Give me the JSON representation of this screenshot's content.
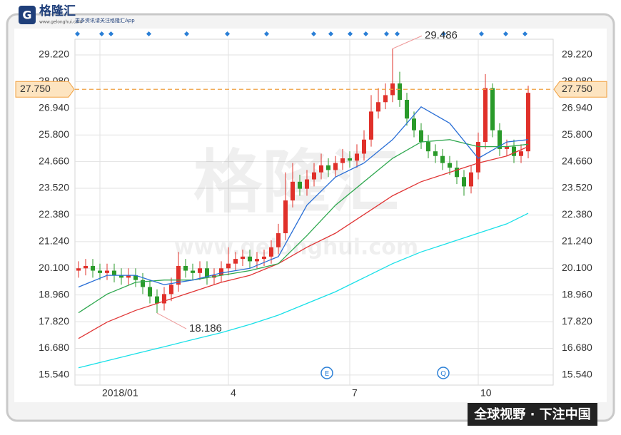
{
  "branding": {
    "logo": "格隆汇",
    "site": "www.gelonghui.com",
    "slogan": "更多资讯请关注格隆汇App",
    "footer": "全球视野 · 下注中国",
    "watermark": "格隆汇"
  },
  "chart_data": {
    "type": "candlestick",
    "open": [
      20.0,
      20.1,
      20.2,
      20.0,
      19.9,
      20.0,
      19.8,
      19.7,
      19.8,
      19.6,
      19.3,
      18.9,
      18.6,
      19.0,
      19.4,
      20.2,
      20.0,
      19.9,
      20.1,
      19.7,
      19.8,
      20.1,
      20.3,
      20.5,
      20.6,
      20.4,
      20.5,
      20.6,
      21.0,
      21.6,
      23.0,
      23.8,
      23.5,
      23.9,
      24.2,
      24.5,
      24.3,
      24.6,
      24.8,
      24.7,
      25.0,
      25.6,
      26.8,
      27.2,
      27.5,
      28.0,
      27.3,
      26.5,
      26.0,
      25.5,
      25.1,
      24.9,
      24.6,
      24.4,
      24.0,
      23.6,
      24.2,
      25.5,
      27.8,
      26.0,
      25.2,
      25.3,
      24.9,
      25.1
    ],
    "high": [
      20.4,
      20.5,
      20.5,
      20.3,
      20.3,
      20.3,
      20.1,
      20.1,
      20.1,
      19.9,
      19.6,
      19.2,
      19.3,
      19.7,
      20.8,
      20.5,
      20.3,
      20.4,
      20.4,
      20.1,
      20.4,
      21.0,
      20.8,
      20.9,
      20.9,
      20.8,
      20.9,
      21.3,
      22.0,
      24.2,
      24.6,
      24.1,
      24.3,
      24.6,
      25.0,
      24.8,
      24.9,
      25.2,
      25.1,
      25.4,
      26.0,
      27.5,
      27.8,
      28.0,
      29.486,
      28.5,
      27.6,
      26.8,
      26.3,
      25.8,
      25.4,
      25.2,
      24.9,
      24.7,
      24.3,
      24.5,
      25.9,
      28.4,
      28.0,
      26.3,
      25.6,
      25.6,
      25.4,
      27.9
    ],
    "low": [
      19.7,
      19.8,
      19.7,
      19.6,
      19.6,
      19.5,
      19.4,
      19.4,
      19.3,
      19.0,
      18.6,
      18.186,
      18.3,
      18.7,
      19.1,
      19.7,
      19.6,
      19.6,
      19.4,
      19.4,
      19.5,
      19.8,
      20.0,
      20.2,
      20.1,
      20.1,
      20.2,
      20.3,
      20.7,
      21.3,
      22.7,
      23.2,
      23.2,
      23.6,
      23.9,
      24.0,
      24.0,
      24.3,
      24.4,
      24.4,
      24.7,
      25.3,
      26.5,
      26.9,
      27.2,
      27.0,
      26.2,
      25.7,
      25.2,
      24.8,
      24.6,
      24.3,
      24.1,
      23.7,
      23.2,
      23.3,
      23.9,
      25.2,
      25.7,
      24.9,
      24.9,
      24.6,
      24.6,
      24.8
    ],
    "close": [
      20.1,
      20.2,
      20.0,
      19.9,
      20.0,
      19.8,
      19.7,
      19.8,
      19.6,
      19.3,
      18.9,
      18.6,
      19.0,
      19.4,
      20.2,
      20.0,
      19.9,
      20.1,
      19.7,
      19.8,
      20.1,
      20.3,
      20.5,
      20.6,
      20.4,
      20.5,
      20.6,
      21.0,
      21.6,
      23.0,
      23.8,
      23.5,
      23.9,
      24.2,
      24.5,
      24.3,
      24.6,
      24.8,
      24.7,
      25.0,
      25.6,
      26.8,
      27.2,
      27.5,
      28.0,
      27.3,
      26.5,
      26.0,
      25.5,
      25.1,
      24.9,
      24.6,
      24.4,
      24.0,
      23.6,
      24.2,
      25.5,
      27.8,
      26.0,
      25.2,
      25.3,
      24.9,
      25.1,
      27.6
    ],
    "up_color": "#e0302a",
    "down_color": "#2a9a2a",
    "series": [
      {
        "color": "#19e0e8",
        "x": [
          0,
          4,
          8,
          12,
          16,
          20,
          24,
          28,
          32,
          36,
          40,
          44,
          48,
          52,
          56,
          60,
          63
        ],
        "values": [
          15.85,
          16.15,
          16.45,
          16.75,
          17.05,
          17.35,
          17.7,
          18.1,
          18.6,
          19.1,
          19.7,
          20.3,
          20.8,
          21.2,
          21.6,
          22.0,
          22.45
        ]
      },
      {
        "color": "#e03535",
        "x": [
          0,
          4,
          8,
          12,
          16,
          20,
          24,
          28,
          32,
          36,
          40,
          44,
          48,
          52,
          56,
          60,
          63
        ],
        "values": [
          17.1,
          17.8,
          18.3,
          18.7,
          19.1,
          19.5,
          19.8,
          20.3,
          21.0,
          21.6,
          22.4,
          23.2,
          23.8,
          24.2,
          24.6,
          24.9,
          25.3
        ]
      },
      {
        "color": "#2fa84f",
        "x": [
          0,
          4,
          8,
          12,
          16,
          20,
          24,
          28,
          32,
          36,
          40,
          44,
          48,
          52,
          56,
          60,
          63
        ],
        "values": [
          18.2,
          19.0,
          19.5,
          19.6,
          19.6,
          19.8,
          20.0,
          20.3,
          21.5,
          22.8,
          23.8,
          24.8,
          25.5,
          25.6,
          25.3,
          25.3,
          25.4
        ]
      },
      {
        "color": "#2a6fd6",
        "x": [
          0,
          4,
          8,
          12,
          16,
          20,
          24,
          28,
          32,
          36,
          40,
          44,
          48,
          52,
          56,
          60,
          63
        ],
        "values": [
          19.3,
          19.8,
          19.8,
          19.4,
          19.6,
          19.9,
          20.1,
          20.6,
          22.8,
          24.0,
          24.6,
          25.6,
          27.0,
          26.3,
          24.8,
          25.5,
          25.6
        ]
      }
    ],
    "annotations": [
      29.486,
      18.186
    ],
    "price_line": {
      "value": 27.75,
      "label": "27.750"
    },
    "markers": [
      "E",
      "Q"
    ],
    "xlim": [
      -0.5,
      66.5
    ],
    "xticks": [
      {
        "value": 3,
        "label": "2018/01"
      },
      {
        "value": 21,
        "label": "4"
      },
      {
        "value": 38,
        "label": "7"
      },
      {
        "value": 56,
        "label": "10"
      }
    ],
    "ylim": [
      15.11,
      29.89
    ],
    "yticks": [
      {
        "value": 15.54,
        "label": "15.540"
      },
      {
        "value": 16.68,
        "label": "16.680"
      },
      {
        "value": 17.82,
        "label": "17.820"
      },
      {
        "value": 18.96,
        "label": "18.960"
      },
      {
        "value": 20.1,
        "label": "20.100"
      },
      {
        "value": 21.24,
        "label": "21.240"
      },
      {
        "value": 22.38,
        "label": "22.380"
      },
      {
        "value": 23.52,
        "label": "23.520"
      },
      {
        "value": 24.66,
        "label": "24.660"
      },
      {
        "value": 25.8,
        "label": "25.800"
      },
      {
        "value": 26.94,
        "label": "26.940"
      },
      {
        "value": 28.08,
        "label": "28.080"
      },
      {
        "value": 29.22,
        "label": "29.220"
      }
    ],
    "grid": true
  }
}
